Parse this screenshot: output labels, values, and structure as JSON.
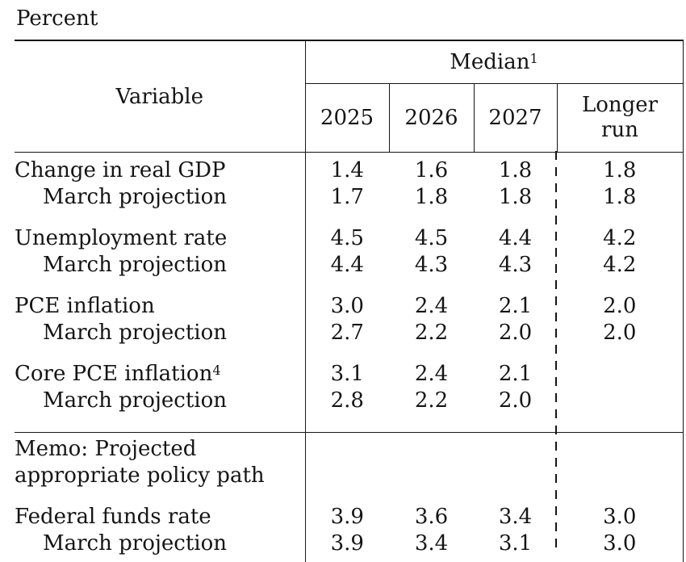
{
  "title": "Percent",
  "colors": {
    "background": "#ffffff",
    "text": "#151515",
    "rule": "#151515"
  },
  "table": {
    "corner_header": "Variable",
    "group_header": {
      "text": "Median",
      "sup": "1"
    },
    "columns": [
      "2025",
      "2026",
      "2027",
      "Longer\nrun"
    ],
    "sections": [
      {
        "rows": [
          {
            "label": "Change in real GDP",
            "values": [
              "1.4",
              "1.6",
              "1.8",
              "1.8"
            ]
          },
          {
            "label": "March projection",
            "indent": true,
            "values": [
              "1.7",
              "1.8",
              "1.8",
              "1.8"
            ]
          },
          {
            "label": "Unemployment rate",
            "gap": true,
            "values": [
              "4.5",
              "4.5",
              "4.4",
              "4.2"
            ]
          },
          {
            "label": "March projection",
            "indent": true,
            "values": [
              "4.4",
              "4.3",
              "4.3",
              "4.2"
            ]
          },
          {
            "label": "PCE inflation",
            "gap": true,
            "values": [
              "3.0",
              "2.4",
              "2.1",
              "2.0"
            ]
          },
          {
            "label": "March projection",
            "indent": true,
            "values": [
              "2.7",
              "2.2",
              "2.0",
              "2.0"
            ]
          },
          {
            "label": "Core PCE inflation",
            "label_sup": "4",
            "gap": true,
            "values": [
              "3.1",
              "2.4",
              "2.1",
              ""
            ]
          },
          {
            "label": "March projection",
            "indent": true,
            "values": [
              "2.8",
              "2.2",
              "2.0",
              ""
            ]
          }
        ]
      },
      {
        "rows": [
          {
            "label": "Memo: Projected\nappropriate policy path",
            "values": [
              "",
              "",
              "",
              ""
            ]
          },
          {
            "label": "Federal funds rate",
            "gap": true,
            "values": [
              "3.9",
              "3.6",
              "3.4",
              "3.0"
            ]
          },
          {
            "label": "March projection",
            "indent": true,
            "values": [
              "3.9",
              "3.4",
              "3.1",
              "3.0"
            ]
          }
        ]
      }
    ]
  }
}
